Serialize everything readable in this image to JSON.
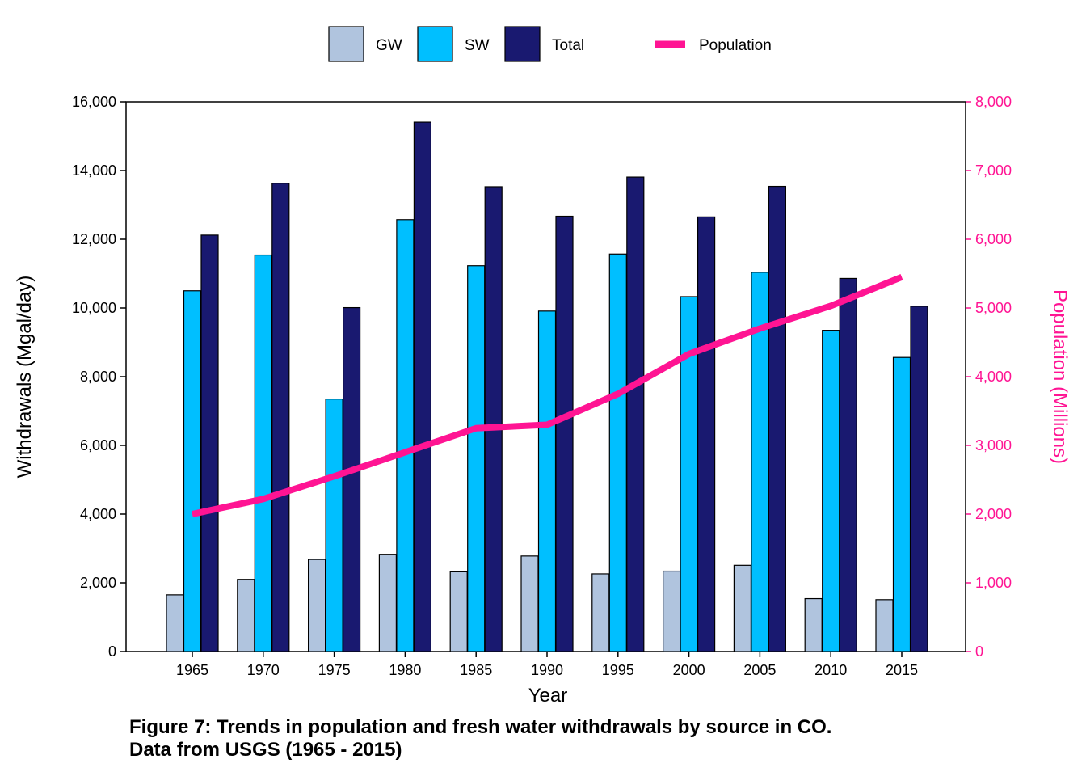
{
  "chart_data": {
    "type": "bar",
    "categories": [
      "1965",
      "1970",
      "1975",
      "1980",
      "1985",
      "1990",
      "1995",
      "2000",
      "2005",
      "2010",
      "2015"
    ],
    "series": [
      {
        "name": "GW",
        "kind": "bar",
        "axis": "left",
        "color": "#b0c4de",
        "values": [
          1650,
          2100,
          2680,
          2830,
          2320,
          2780,
          2260,
          2340,
          2510,
          1540,
          1510
        ]
      },
      {
        "name": "SW",
        "kind": "bar",
        "axis": "left",
        "color": "#00bfff",
        "values": [
          10500,
          11540,
          7350,
          12570,
          11230,
          9910,
          11570,
          10330,
          11040,
          9350,
          8560
        ]
      },
      {
        "name": "Total",
        "kind": "bar",
        "axis": "left",
        "color": "#191970",
        "values": [
          12120,
          13630,
          10010,
          15410,
          13530,
          12670,
          13810,
          12650,
          13540,
          10860,
          10050
        ]
      },
      {
        "name": "Population",
        "kind": "line",
        "axis": "right",
        "color": "#ff1493",
        "values": [
          2000,
          2220,
          2550,
          2900,
          3250,
          3300,
          3750,
          4330,
          4700,
          5030,
          5450
        ]
      }
    ],
    "xlabel": "Year",
    "ylabel": "Withdrawals (Mgal/day)",
    "ylabel_right": "Population (Millions)",
    "ylim": [
      0,
      16000
    ],
    "ylim_right": [
      0,
      8000
    ],
    "yticks": [
      "0",
      "2,000",
      "4,000",
      "6,000",
      "8,000",
      "10,000",
      "12,000",
      "14,000",
      "16,000"
    ],
    "yticks_right": [
      "0",
      "1,000",
      "2,000",
      "3,000",
      "4,000",
      "5,000",
      "6,000",
      "7,000",
      "8,000"
    ],
    "legend_position": "top-center",
    "grid": false
  },
  "caption": {
    "line1": "Figure 7: Trends in population and fresh water withdrawals by source in CO.",
    "line2": "Data from USGS (1965 - 2015)"
  }
}
